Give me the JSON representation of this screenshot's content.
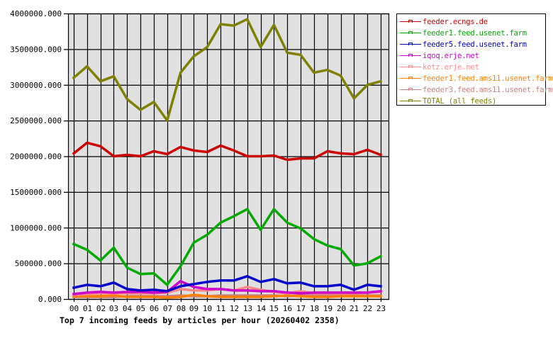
{
  "chart_data": {
    "type": "line",
    "title": "Top 7 incoming feeds by articles per hour (20260402 2358)",
    "xlabel": "",
    "ylabel": "",
    "ylim": [
      0,
      4000000
    ],
    "grid": true,
    "legend_position": "right",
    "x": [
      "00",
      "01",
      "02",
      "03",
      "04",
      "05",
      "06",
      "07",
      "08",
      "09",
      "10",
      "11",
      "12",
      "13",
      "14",
      "15",
      "16",
      "17",
      "18",
      "19",
      "20",
      "21",
      "22",
      "23"
    ],
    "y_ticks": [
      "0.000",
      "500000.000",
      "1000000.000",
      "1500000.000",
      "2000000.000",
      "2500000.000",
      "3000000.000",
      "3500000.000",
      "4000000.000"
    ],
    "series": [
      {
        "name": "feeder.ecngs.de",
        "color": "#cc0000",
        "values": [
          2040000,
          2190000,
          2140000,
          2000000,
          2020000,
          2000000,
          2070000,
          2030000,
          2130000,
          2080000,
          2060000,
          2150000,
          2080000,
          2000000,
          2000000,
          2010000,
          1950000,
          1970000,
          1970000,
          2070000,
          2040000,
          2030000,
          2090000,
          2020000
        ]
      },
      {
        "name": "feeder1.feed.usenet.farm",
        "color": "#00aa00",
        "values": [
          770000,
          690000,
          540000,
          720000,
          440000,
          350000,
          360000,
          200000,
          460000,
          790000,
          900000,
          1070000,
          1160000,
          1260000,
          970000,
          1260000,
          1070000,
          990000,
          840000,
          750000,
          700000,
          470000,
          500000,
          600000
        ]
      },
      {
        "name": "feeder5.feed.usenet.farm",
        "color": "#0000cc",
        "values": [
          160000,
          200000,
          180000,
          230000,
          140000,
          120000,
          130000,
          110000,
          180000,
          210000,
          240000,
          260000,
          260000,
          320000,
          240000,
          280000,
          220000,
          230000,
          180000,
          180000,
          200000,
          130000,
          200000,
          180000
        ]
      },
      {
        "name": "iqoq.erje.net",
        "color": "#cc00cc",
        "values": [
          70000,
          90000,
          100000,
          90000,
          100000,
          100000,
          90000,
          100000,
          250000,
          170000,
          140000,
          140000,
          120000,
          120000,
          110000,
          110000,
          90000,
          80000,
          90000,
          90000,
          90000,
          90000,
          90000,
          110000
        ]
      },
      {
        "name": "kotz.erje.net",
        "color": "#ff8888",
        "values": [
          60000,
          70000,
          80000,
          80000,
          80000,
          80000,
          80000,
          90000,
          140000,
          120000,
          120000,
          140000,
          120000,
          170000,
          130000,
          100000,
          80000,
          110000,
          80000,
          80000,
          80000,
          80000,
          90000,
          100000
        ]
      },
      {
        "name": "feeder1.feed.ams11.usenet.farm",
        "color": "#ff8000",
        "values": [
          40000,
          40000,
          40000,
          50000,
          30000,
          30000,
          30000,
          20000,
          30000,
          60000,
          40000,
          30000,
          30000,
          30000,
          30000,
          40000,
          50000,
          40000,
          30000,
          30000,
          40000,
          40000,
          40000,
          40000
        ]
      },
      {
        "name": "feeder3.feed.ams11.usenet.farm",
        "color": "#cc8080",
        "values": [
          30000,
          30000,
          30000,
          30000,
          40000,
          40000,
          40000,
          40000,
          50000,
          40000,
          40000,
          50000,
          50000,
          50000,
          50000,
          50000,
          40000,
          50000,
          50000,
          50000,
          50000,
          50000,
          50000,
          50000
        ]
      },
      {
        "name": "TOTAL (all feeds)",
        "color": "#808000",
        "values": [
          3100000,
          3260000,
          3050000,
          3120000,
          2800000,
          2650000,
          2760000,
          2500000,
          3170000,
          3400000,
          3530000,
          3850000,
          3830000,
          3920000,
          3530000,
          3840000,
          3450000,
          3420000,
          3170000,
          3210000,
          3130000,
          2810000,
          3000000,
          3050000
        ]
      }
    ]
  },
  "legend": {
    "items": [
      {
        "label": "feeder.ecngs.de",
        "color": "#cc0000"
      },
      {
        "label": "feeder1.feed.usenet.farm",
        "color": "#00aa00"
      },
      {
        "label": "feeder5.feed.usenet.farm",
        "color": "#0000cc"
      },
      {
        "label": "iqoq.erje.net",
        "color": "#cc00cc"
      },
      {
        "label": "kotz.erje.net",
        "color": "#ff8888"
      },
      {
        "label": "feeder1.feed.ams11.usenet.farm",
        "color": "#ff8000"
      },
      {
        "label": "feeder3.feed.ams11.usenet.farm",
        "color": "#cc8080"
      },
      {
        "label": "TOTAL (all feeds)",
        "color": "#808000"
      }
    ]
  },
  "colors": {
    "plot_background": "#e0e0e0",
    "grid": "#000000",
    "page_background": "#ffffff"
  }
}
